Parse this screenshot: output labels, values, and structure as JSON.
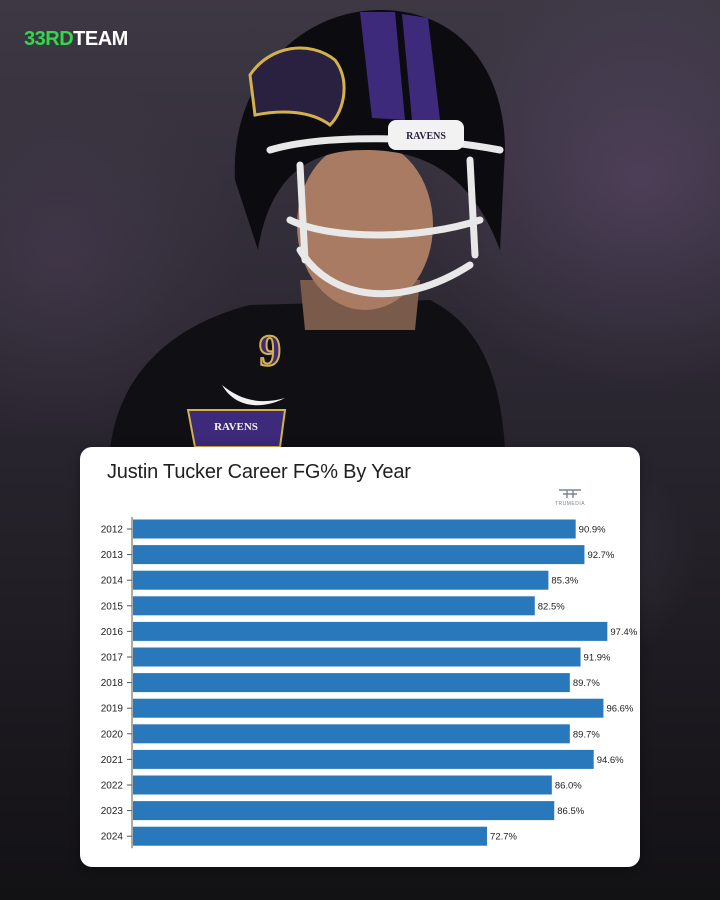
{
  "brand": {
    "logo_number": "33RD",
    "logo_word": "TEAM"
  },
  "photo": {
    "jersey_number": "9",
    "helmet_text": "RAVENS",
    "shoulder_patch_text": "RAVENS"
  },
  "source_logo": {
    "text": "TRUMEDIA"
  },
  "colors": {
    "bar": "#2a78bc",
    "brand_green": "#32d74b",
    "card_bg": "#ffffff"
  },
  "chart_data": {
    "type": "bar",
    "orientation": "horizontal",
    "title": "Justin Tucker Career FG% By Year",
    "xlabel": "",
    "ylabel": "",
    "xlim": [
      0,
      100
    ],
    "grid": false,
    "categories": [
      "2012",
      "2013",
      "2014",
      "2015",
      "2016",
      "2017",
      "2018",
      "2019",
      "2020",
      "2021",
      "2022",
      "2023",
      "2024"
    ],
    "values": [
      90.9,
      92.7,
      85.3,
      82.5,
      97.4,
      91.9,
      89.7,
      96.6,
      89.7,
      94.6,
      86.0,
      86.5,
      72.7
    ],
    "value_labels": [
      "90.9%",
      "92.7%",
      "85.3%",
      "82.5%",
      "97.4%",
      "91.9%",
      "89.7%",
      "96.6%",
      "89.7%",
      "94.6%",
      "86.0%",
      "86.5%",
      "72.7%"
    ]
  }
}
